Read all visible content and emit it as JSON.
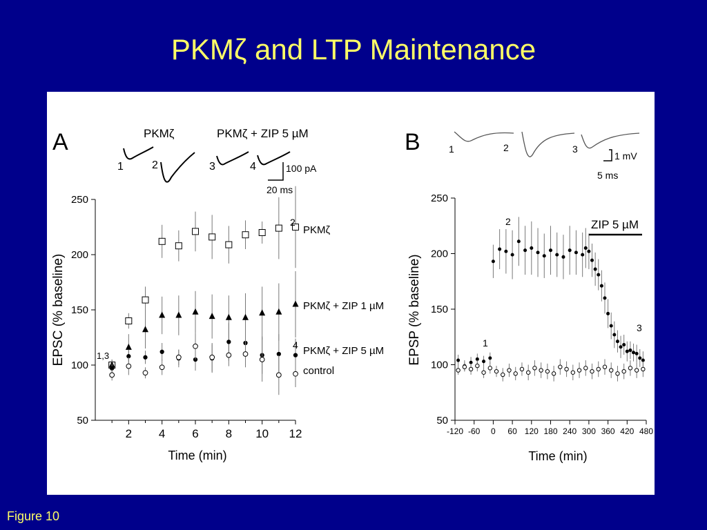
{
  "slide": {
    "title": "PKMζ and LTP Maintenance",
    "footer": "Figure 10"
  },
  "chart_data": [
    {
      "panel_label": "A",
      "type": "scatter",
      "xlabel": "Time (min)",
      "ylabel": "EPSC (% baseline)",
      "xlim": [
        0,
        12
      ],
      "ylim": [
        50,
        250
      ],
      "xticks": [
        2,
        4,
        6,
        8,
        10,
        12
      ],
      "yticks": [
        50,
        100,
        150,
        200,
        250
      ],
      "grid": false,
      "legend": "right, next to series",
      "series": [
        {
          "name": "PKMζ",
          "marker": "open-square",
          "x": [
            1,
            2,
            3,
            4,
            5,
            6,
            7,
            8,
            9,
            10,
            11,
            12
          ],
          "y": [
            100,
            140,
            159,
            212,
            208,
            221,
            216,
            209,
            218,
            220,
            224,
            225
          ],
          "err": [
            5,
            7,
            12,
            15,
            14,
            18,
            20,
            17,
            13,
            10,
            28,
            37
          ]
        },
        {
          "name": "PKMζ + ZIP 1 µM",
          "marker": "filled-triangle",
          "x": [
            1,
            2,
            3,
            4,
            5,
            6,
            7,
            8,
            9,
            10,
            11,
            12
          ],
          "y": [
            100,
            116,
            132,
            145,
            145,
            148,
            144,
            143,
            143,
            147,
            148,
            155
          ],
          "err": [
            5,
            12,
            17,
            17,
            18,
            19,
            20,
            20,
            22,
            24,
            26,
            30
          ]
        },
        {
          "name": "PKMζ + ZIP 5 µM",
          "marker": "filled-circle",
          "x": [
            1,
            2,
            3,
            4,
            5,
            6,
            7,
            8,
            9,
            10,
            11,
            12
          ],
          "y": [
            97,
            108,
            107,
            112,
            106,
            105,
            106,
            121,
            120,
            109,
            110,
            109
          ],
          "err": [
            4,
            6,
            6,
            8,
            8,
            10,
            13,
            17,
            20,
            17,
            18,
            15
          ]
        },
        {
          "name": "control",
          "marker": "open-circle",
          "x": [
            1,
            2,
            3,
            4,
            5,
            6,
            7,
            8,
            9,
            10,
            11,
            12
          ],
          "y": [
            91,
            99,
            93,
            98,
            107,
            117,
            107,
            109,
            110,
            105,
            91,
            92
          ],
          "err": [
            5,
            8,
            5,
            7,
            7,
            12,
            13,
            10,
            12,
            20,
            18,
            12
          ]
        }
      ],
      "point_annotations": [
        "1,3",
        "2",
        "4"
      ],
      "traces": {
        "labels": [
          "PKMζ",
          "PKMζ + ZIP 5 µM"
        ],
        "numbers": [
          "1",
          "2",
          "3",
          "4"
        ],
        "scale_y": "100 pA",
        "scale_x": "20 ms"
      }
    },
    {
      "panel_label": "B",
      "type": "scatter",
      "xlabel": "Time (min)",
      "ylabel": "EPSP (% baseline)",
      "xlim": [
        -120,
        480
      ],
      "ylim": [
        50,
        250
      ],
      "xticks": [
        -120,
        -60,
        0,
        60,
        120,
        180,
        240,
        300,
        360,
        420,
        480
      ],
      "yticks": [
        50,
        100,
        150,
        200,
        250
      ],
      "grid": false,
      "series": [
        {
          "marker": "filled-circle",
          "x": [
            -110,
            -90,
            -70,
            -50,
            -30,
            -10,
            0,
            20,
            40,
            60,
            80,
            100,
            120,
            140,
            160,
            180,
            200,
            220,
            240,
            260,
            280,
            290,
            300,
            310,
            320,
            330,
            340,
            350,
            360,
            370,
            380,
            390,
            400,
            410,
            420,
            430,
            440,
            450,
            460,
            470
          ],
          "y": [
            104,
            99,
            102,
            105,
            103,
            106,
            193,
            204,
            202,
            199,
            211,
            203,
            205,
            201,
            198,
            203,
            199,
            197,
            203,
            201,
            199,
            205,
            202,
            194,
            186,
            181,
            171,
            160,
            146,
            135,
            127,
            121,
            116,
            118,
            112,
            113,
            111,
            110,
            106,
            104
          ],
          "err": [
            5,
            5,
            5,
            5,
            5,
            5,
            15,
            18,
            20,
            22,
            22,
            22,
            24,
            22,
            20,
            22,
            20,
            20,
            22,
            20,
            20,
            18,
            16,
            15,
            15,
            14,
            14,
            14,
            13,
            12,
            12,
            10,
            10,
            9,
            9,
            8,
            8,
            8,
            8,
            8
          ]
        },
        {
          "marker": "open-circle",
          "x": [
            -110,
            -90,
            -70,
            -50,
            -30,
            -10,
            10,
            30,
            50,
            70,
            90,
            110,
            130,
            150,
            170,
            190,
            210,
            230,
            250,
            270,
            290,
            310,
            330,
            350,
            370,
            390,
            410,
            430,
            450,
            470
          ],
          "y": [
            95,
            98,
            96,
            99,
            93,
            97,
            94,
            91,
            95,
            92,
            96,
            93,
            97,
            95,
            94,
            92,
            98,
            96,
            93,
            95,
            97,
            94,
            96,
            98,
            95,
            92,
            94,
            97,
            95,
            96
          ],
          "err": [
            4,
            4,
            5,
            5,
            5,
            5,
            5,
            6,
            6,
            6,
            6,
            7,
            7,
            7,
            7,
            7,
            7,
            7,
            7,
            7,
            7,
            7,
            7,
            7,
            7,
            7,
            7,
            7,
            7,
            7
          ]
        }
      ],
      "point_annotations": [
        "1",
        "2",
        "3"
      ],
      "treatment_bar": {
        "label": "ZIP 5 µM",
        "start": 300,
        "end": 480
      },
      "traces": {
        "numbers": [
          "1",
          "2",
          "3"
        ],
        "scale_y": "1 mV",
        "scale_x": "5 ms"
      }
    }
  ]
}
